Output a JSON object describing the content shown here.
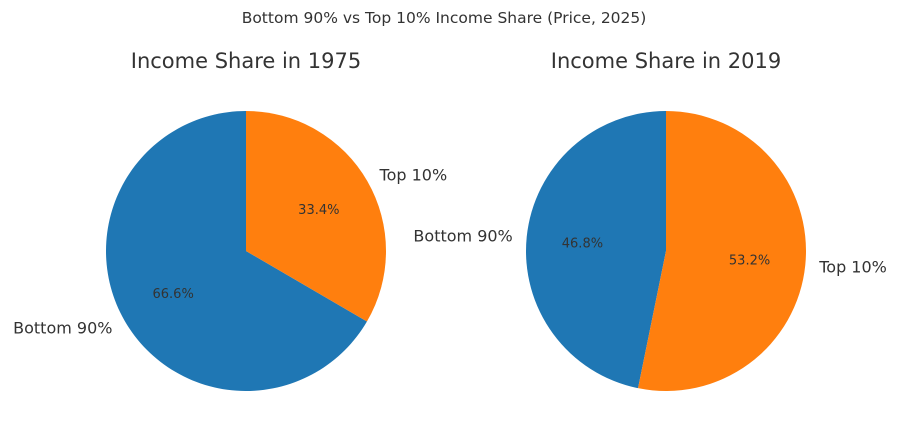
{
  "figure": {
    "suptitle": "Bottom 90% vs Top 10% Income Share (Price, 2025)"
  },
  "chart_data": [
    {
      "type": "pie",
      "title": "Income Share in 1975",
      "labels": [
        "Bottom 90%",
        "Top 10%"
      ],
      "values": [
        66.6,
        33.4
      ],
      "value_labels": [
        "66.6%",
        "33.4%"
      ],
      "colors": [
        "#1f77b4",
        "#ff7f0e"
      ],
      "start_angle_deg": 90,
      "direction": "counterclockwise"
    },
    {
      "type": "pie",
      "title": "Income Share in 2019",
      "labels": [
        "Bottom 90%",
        "Top 10%"
      ],
      "values": [
        46.8,
        53.2
      ],
      "value_labels": [
        "46.8%",
        "53.2%"
      ],
      "colors": [
        "#1f77b4",
        "#ff7f0e"
      ],
      "start_angle_deg": 90,
      "direction": "counterclockwise"
    }
  ]
}
